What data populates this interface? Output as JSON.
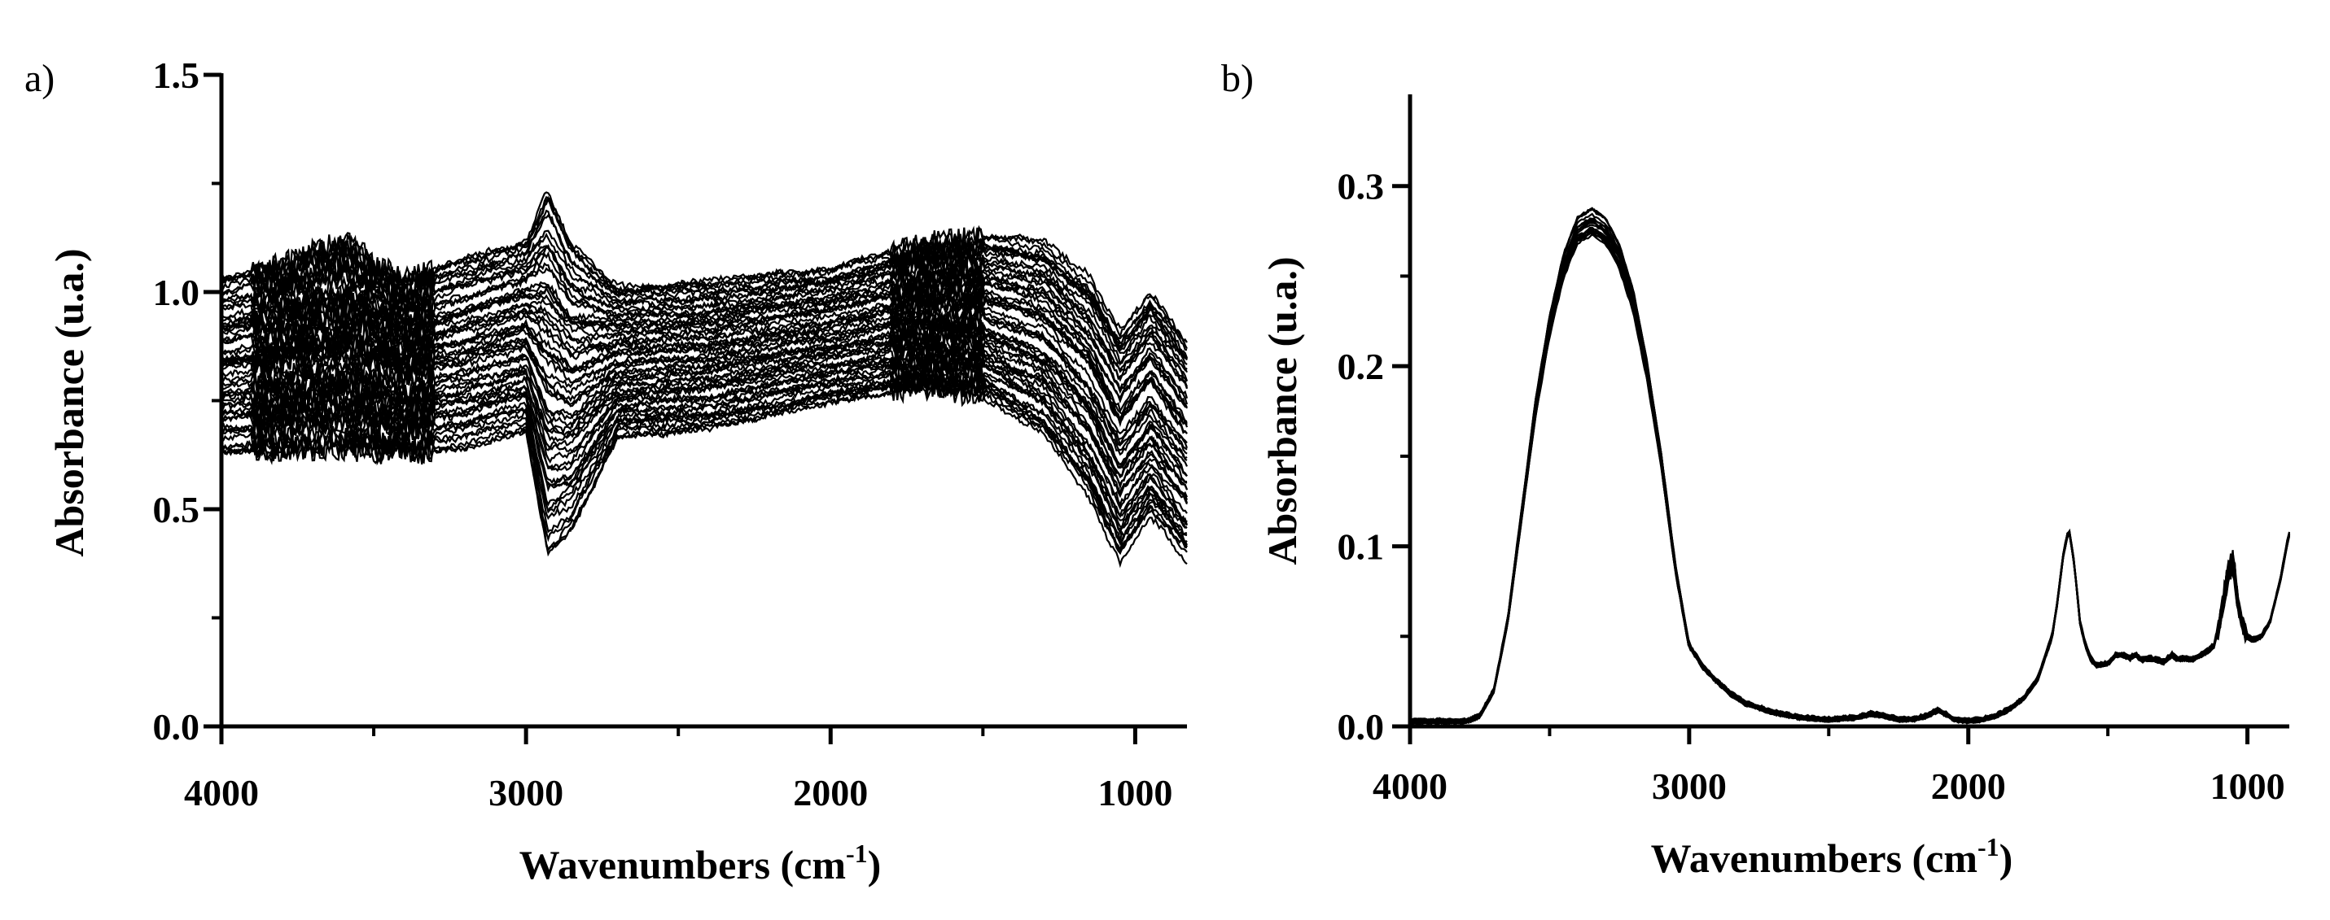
{
  "colors": {
    "line": "#000000",
    "background": "#ffffff"
  },
  "chart_data": [
    {
      "type": "line",
      "panel_label": "a)",
      "title": "",
      "xlabel": "Wavenumbers (cm",
      "xlabel_sup": "-1",
      "xlabel_close": ")",
      "ylabel": "Absorbance (u.a.)",
      "xlim": [
        4000,
        830
      ],
      "ylim": [
        0,
        1.5
      ],
      "x_reversed": true,
      "xticks": [
        4000,
        3000,
        2000,
        1000
      ],
      "xtick_labels": [
        "4000",
        "3000",
        "2000",
        "1000"
      ],
      "yticks": [
        0.0,
        0.5,
        1.0,
        1.5
      ],
      "ytick_labels": [
        "0.0",
        "0.5",
        "1.0",
        "1.5"
      ],
      "grid": false,
      "legend": "none",
      "n_spectra": 60,
      "envelope": {
        "x": [
          4000,
          3800,
          3600,
          3400,
          3200,
          3000,
          2930,
          2850,
          2700,
          2400,
          2000,
          1700,
          1500,
          1300,
          1150,
          1050,
          950,
          830
        ],
        "min": [
          0.63,
          0.64,
          0.64,
          0.63,
          0.64,
          0.68,
          0.4,
          0.45,
          0.66,
          0.68,
          0.74,
          0.77,
          0.75,
          0.66,
          0.52,
          0.37,
          0.47,
          0.37
        ],
        "max": [
          1.03,
          1.06,
          1.12,
          1.03,
          1.08,
          1.12,
          1.24,
          1.12,
          1.02,
          1.03,
          1.06,
          1.12,
          1.14,
          1.13,
          1.05,
          0.93,
          1.02,
          0.9
        ]
      }
    },
    {
      "type": "line",
      "panel_label": "b)",
      "title": "",
      "xlabel": "Wavenumbers (cm",
      "xlabel_sup": "-1",
      "xlabel_close": ")",
      "ylabel": "Absorbance (u.a.)",
      "xlim": [
        4000,
        850
      ],
      "ylim": [
        0,
        0.35
      ],
      "x_reversed": true,
      "xticks": [
        4000,
        3000,
        2000,
        1000
      ],
      "xtick_labels": [
        "4000",
        "3000",
        "2000",
        "1000"
      ],
      "yticks": [
        0.0,
        0.1,
        0.2,
        0.3
      ],
      "ytick_labels": [
        "0.0",
        "0.1",
        "0.2",
        "0.3"
      ],
      "grid": false,
      "legend": "none",
      "n_spectra": 20,
      "mean_spectrum": {
        "x": [
          4000,
          3800,
          3750,
          3700,
          3650,
          3600,
          3550,
          3500,
          3450,
          3400,
          3350,
          3300,
          3250,
          3200,
          3150,
          3100,
          3050,
          3000,
          2950,
          2900,
          2850,
          2800,
          2700,
          2600,
          2500,
          2400,
          2350,
          2300,
          2250,
          2200,
          2150,
          2110,
          2080,
          2050,
          2000,
          1950,
          1900,
          1850,
          1800,
          1750,
          1700,
          1680,
          1660,
          1640,
          1620,
          1600,
          1580,
          1560,
          1540,
          1500,
          1470,
          1450,
          1420,
          1400,
          1380,
          1350,
          1300,
          1270,
          1250,
          1230,
          1200,
          1150,
          1120,
          1100,
          1080,
          1065,
          1050,
          1035,
          1020,
          1000,
          980,
          950,
          920,
          900,
          880,
          860,
          850
        ],
        "y": [
          0.003,
          0.003,
          0.006,
          0.02,
          0.06,
          0.12,
          0.18,
          0.226,
          0.26,
          0.28,
          0.285,
          0.28,
          0.265,
          0.24,
          0.2,
          0.15,
          0.09,
          0.045,
          0.033,
          0.025,
          0.018,
          0.013,
          0.008,
          0.005,
          0.004,
          0.005,
          0.007,
          0.006,
          0.004,
          0.004,
          0.006,
          0.009,
          0.007,
          0.004,
          0.003,
          0.004,
          0.006,
          0.01,
          0.016,
          0.027,
          0.05,
          0.07,
          0.095,
          0.11,
          0.09,
          0.058,
          0.045,
          0.037,
          0.034,
          0.035,
          0.04,
          0.04,
          0.038,
          0.04,
          0.037,
          0.038,
          0.036,
          0.04,
          0.037,
          0.038,
          0.037,
          0.041,
          0.045,
          0.058,
          0.078,
          0.09,
          0.095,
          0.07,
          0.06,
          0.05,
          0.048,
          0.05,
          0.058,
          0.07,
          0.083,
          0.1,
          0.107
        ]
      }
    }
  ]
}
